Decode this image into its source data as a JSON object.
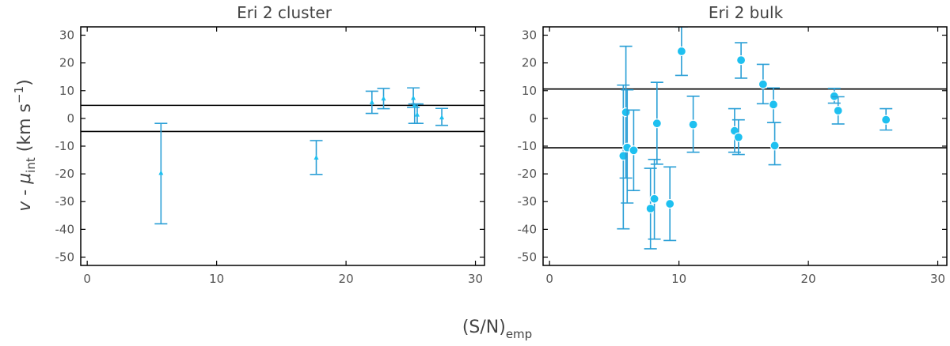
{
  "figure": {
    "xlabel": {
      "main": "(S/N)",
      "sub": "emp"
    },
    "ylabel": {
      "v": "v",
      "dash": " - ",
      "mu": "μ",
      "mu_sub": "int",
      "units": " (km s",
      "exp": "−1",
      "close": ")"
    }
  },
  "style": {
    "point_color": "#1ec0f0",
    "errorbar_color": "#2a9fd6",
    "line_color": "#000000"
  },
  "chart_data": [
    {
      "type": "scatter",
      "title": "Eri 2 cluster",
      "xlim": [
        -0.5,
        30.7
      ],
      "ylim": [
        -53,
        33
      ],
      "xticks": [
        0,
        10,
        20,
        30
      ],
      "yticks": [
        30,
        20,
        10,
        0,
        -10,
        -20,
        -30,
        -40,
        -50
      ],
      "ytick_labels": [
        "30",
        "20",
        "10",
        "0",
        "-10",
        "-20",
        "-30",
        "-40",
        "-50"
      ],
      "marker": "triangle",
      "hlines": [
        4.7,
        -4.7
      ],
      "points": [
        {
          "x": 5.7,
          "y": -19.5,
          "lo": -38,
          "hi": -1.8
        },
        {
          "x": 17.7,
          "y": -14,
          "lo": -20.2,
          "hi": -8
        },
        {
          "x": 22.0,
          "y": 6.0,
          "lo": 1.8,
          "hi": 9.8
        },
        {
          "x": 22.9,
          "y": 7.3,
          "lo": 3.5,
          "hi": 10.8
        },
        {
          "x": 25.2,
          "y": 7.5,
          "lo": 4.0,
          "hi": 11.0
        },
        {
          "x": 25.3,
          "y": 4.8,
          "lo": -1.8,
          "hi": 5.2
        },
        {
          "x": 25.5,
          "y": 1.5,
          "lo": -1.8,
          "hi": 5.2
        },
        {
          "x": 27.4,
          "y": 0.5,
          "lo": -2.5,
          "hi": 3.6
        }
      ]
    },
    {
      "type": "scatter",
      "title": "Eri 2 bulk",
      "xlim": [
        -0.5,
        30.7
      ],
      "ylim": [
        -53,
        33
      ],
      "xticks": [
        0,
        10,
        20,
        30
      ],
      "yticks": [
        30,
        20,
        10,
        0,
        -10,
        -20,
        -30,
        -40,
        -50
      ],
      "ytick_labels": [
        "30",
        "20",
        "10",
        "0",
        "-10",
        "-20",
        "-30",
        "-40",
        "-50"
      ],
      "marker": "circle",
      "hlines": [
        10.6,
        -10.6
      ],
      "points": [
        {
          "x": 5.7,
          "y": -13.5,
          "lo": -39.8,
          "hi": 12.0
        },
        {
          "x": 5.9,
          "y": 2.2,
          "lo": -21.5,
          "hi": 26.0
        },
        {
          "x": 6.0,
          "y": -10.5,
          "lo": -30.5,
          "hi": 10.3
        },
        {
          "x": 6.5,
          "y": -11.5,
          "lo": -26.0,
          "hi": 3.0
        },
        {
          "x": 7.8,
          "y": -32.5,
          "lo": -47.0,
          "hi": -18.0
        },
        {
          "x": 8.1,
          "y": -29.0,
          "lo": -43.5,
          "hi": -14.8
        },
        {
          "x": 8.3,
          "y": -1.8,
          "lo": -16.5,
          "hi": 13.0
        },
        {
          "x": 9.3,
          "y": -30.8,
          "lo": -44.0,
          "hi": -17.5
        },
        {
          "x": 10.2,
          "y": 24.2,
          "lo": 15.5,
          "hi": 33.0
        },
        {
          "x": 11.1,
          "y": -2.2,
          "lo": -12.2,
          "hi": 8.0
        },
        {
          "x": 14.3,
          "y": -4.5,
          "lo": -12.2,
          "hi": 3.5
        },
        {
          "x": 14.6,
          "y": -6.8,
          "lo": -13.0,
          "hi": -0.5
        },
        {
          "x": 14.8,
          "y": 21.0,
          "lo": 14.5,
          "hi": 27.3
        },
        {
          "x": 16.5,
          "y": 12.3,
          "lo": 5.3,
          "hi": 19.5
        },
        {
          "x": 17.3,
          "y": 5.0,
          "lo": -1.5,
          "hi": 11.0
        },
        {
          "x": 17.4,
          "y": -9.8,
          "lo": -16.7,
          "hi": -1.5
        },
        {
          "x": 22.0,
          "y": 8.0,
          "lo": 5.5,
          "hi": 10.8
        },
        {
          "x": 22.3,
          "y": 2.8,
          "lo": -2.0,
          "hi": 7.8
        },
        {
          "x": 26.0,
          "y": -0.5,
          "lo": -4.2,
          "hi": 3.5
        }
      ]
    }
  ]
}
